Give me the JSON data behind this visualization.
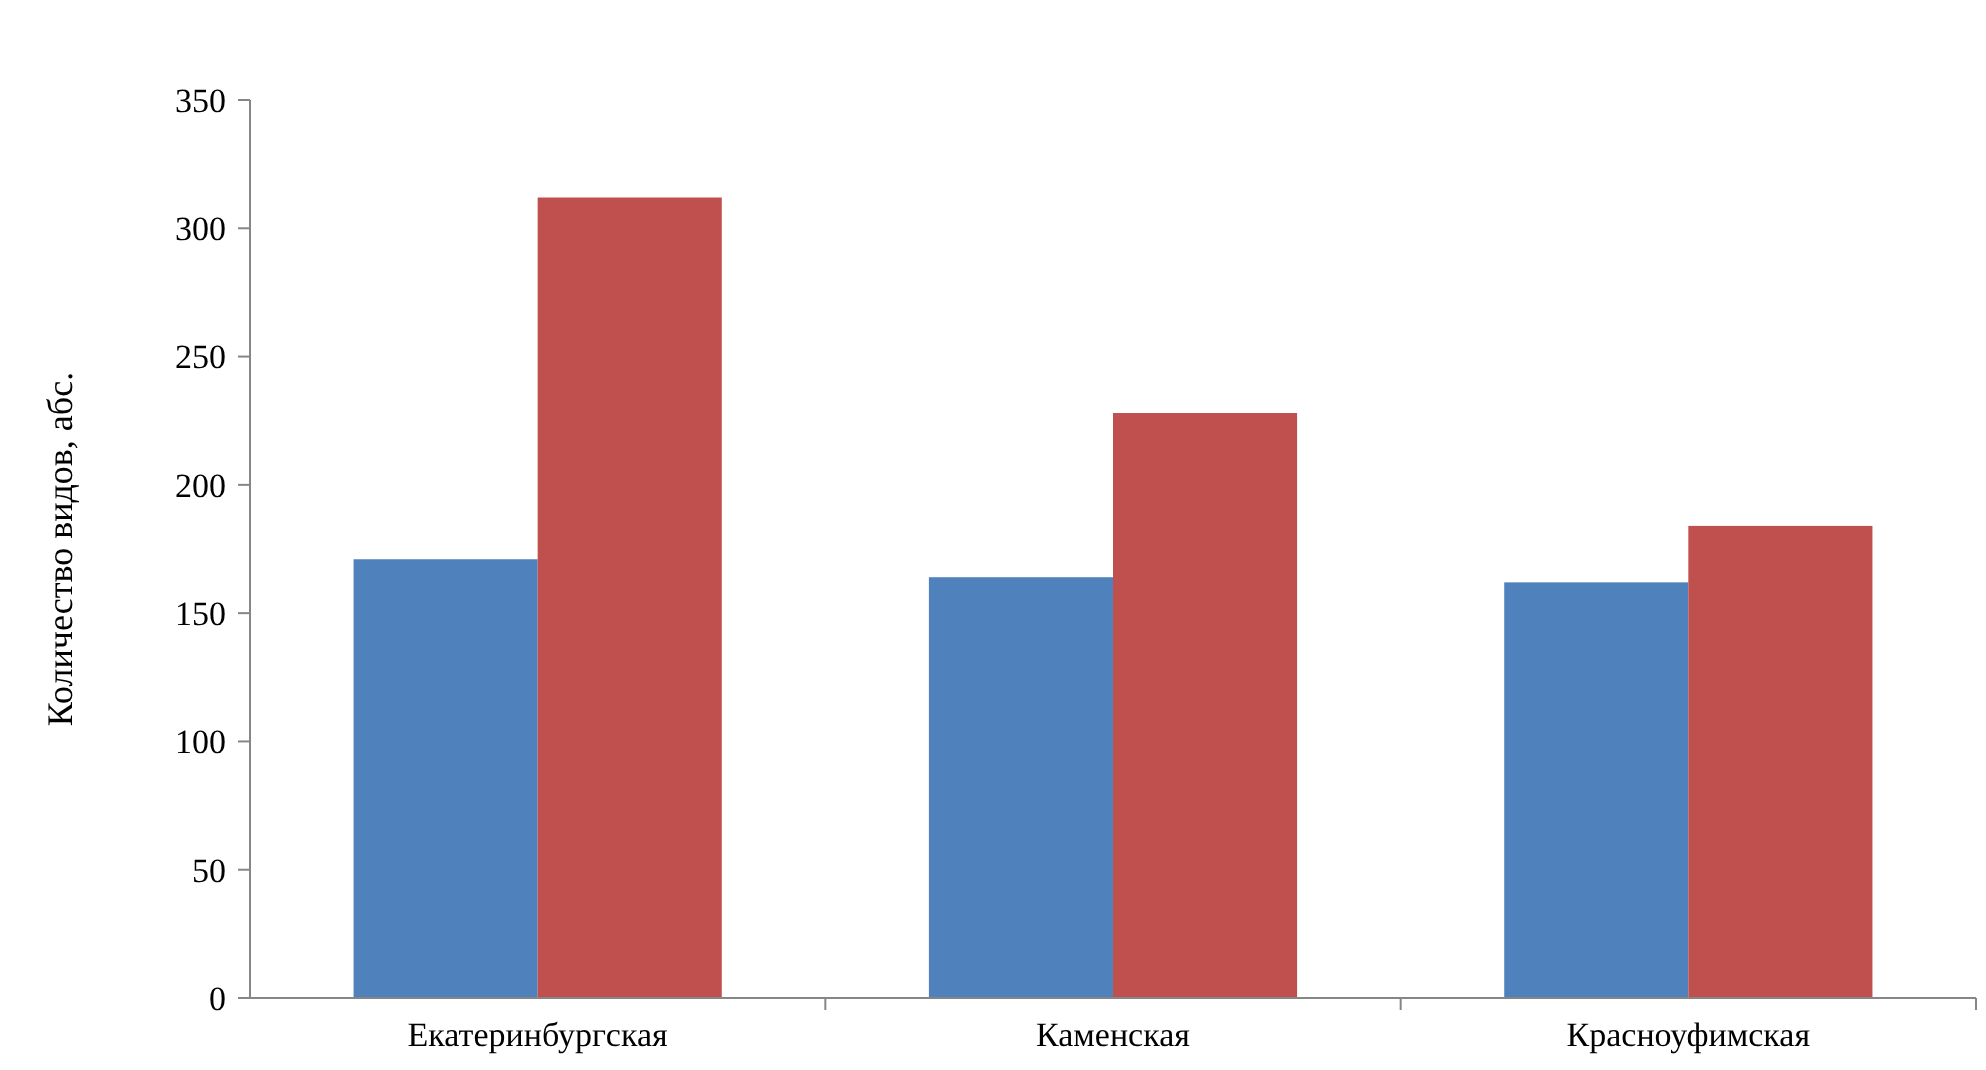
{
  "chart_data": {
    "type": "bar",
    "ylabel": "Количество видов, абс.",
    "categories": [
      "Екатеринбургская",
      "Каменская",
      "Красноуфимская"
    ],
    "series": [
      {
        "color": "#4f81bd",
        "values": [
          171,
          164,
          162
        ]
      },
      {
        "color": "#c0504d",
        "values": [
          312,
          228,
          184
        ]
      }
    ],
    "ylim": [
      0,
      350
    ],
    "yticks": [
      0,
      50,
      100,
      150,
      200,
      250,
      300,
      350
    ],
    "grid": false
  }
}
